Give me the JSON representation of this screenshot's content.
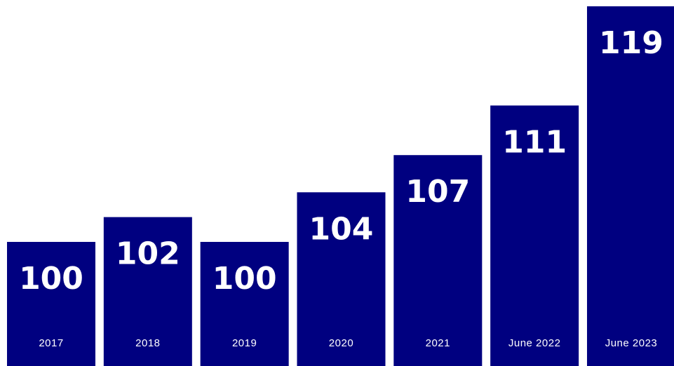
{
  "colors": {
    "bar": "#000080",
    "label": "#ffffff",
    "background": "#ffffff"
  },
  "chart_data": {
    "type": "bar",
    "categories": [
      "2017",
      "2018",
      "2019",
      "2020",
      "2021",
      "June 2022",
      "June 2023"
    ],
    "values": [
      100,
      102,
      100,
      104,
      107,
      111,
      119
    ],
    "title": "",
    "xlabel": "",
    "ylabel": "",
    "data_labels": [
      "100",
      "102",
      "100",
      "104",
      "107",
      "111",
      "119"
    ],
    "category_label_position": "inside-bottom",
    "value_label_position": "inside-top",
    "grid": false,
    "legend": "none"
  }
}
